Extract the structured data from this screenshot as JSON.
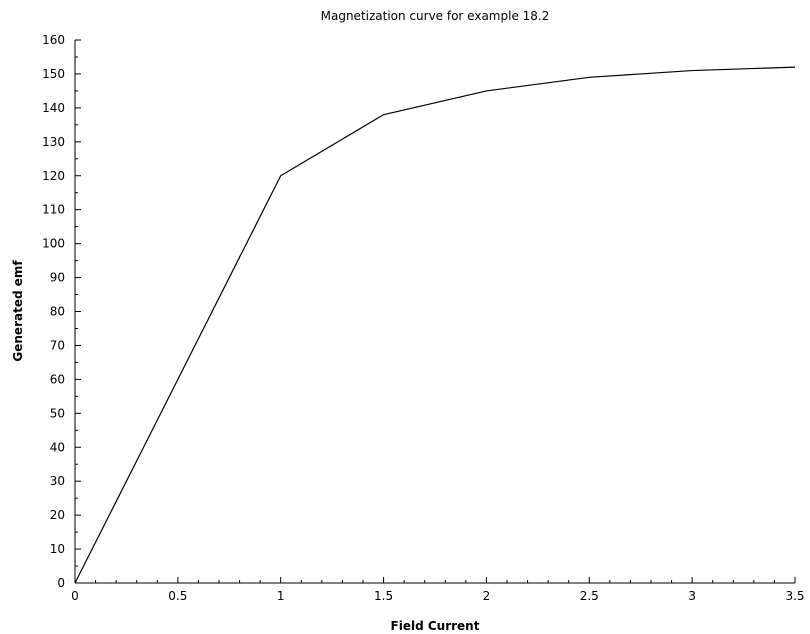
{
  "chart_data": {
    "type": "line",
    "title": "Magnetization curve for example 18.2",
    "xlabel": "Field Current",
    "ylabel": "Generated emf",
    "xlim": [
      0,
      3.5
    ],
    "ylim": [
      0,
      160
    ],
    "xticks": [
      0,
      0.5,
      1,
      1.5,
      2,
      2.5,
      3,
      3.5
    ],
    "xtick_labels": [
      "0",
      "0.5",
      "1",
      "1.5",
      "2",
      "2.5",
      "3",
      "3.5"
    ],
    "yticks": [
      0,
      10,
      20,
      30,
      40,
      50,
      60,
      70,
      80,
      90,
      100,
      110,
      120,
      130,
      140,
      150,
      160
    ],
    "ytick_labels": [
      "0",
      "10",
      "20",
      "30",
      "40",
      "50",
      "60",
      "70",
      "80",
      "90",
      "100",
      "110",
      "120",
      "130",
      "140",
      "150",
      "160"
    ],
    "grid": false,
    "series": [
      {
        "x": [
          0,
          0.2,
          0.4,
          0.6,
          0.8,
          1.0,
          1.5,
          2.0,
          2.5,
          3.0,
          3.5
        ],
        "y": [
          0,
          24,
          48,
          72,
          96,
          120,
          138,
          145,
          149,
          151,
          152
        ],
        "color": "#000000"
      }
    ]
  }
}
